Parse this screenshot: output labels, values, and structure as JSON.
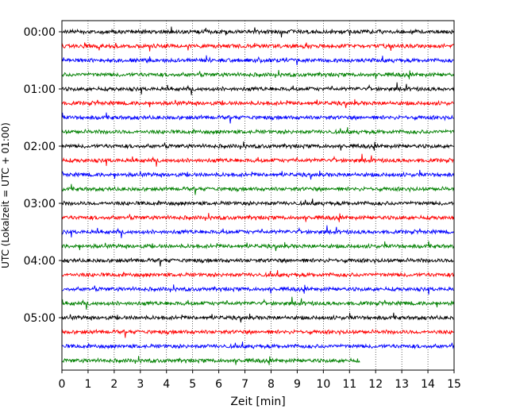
{
  "chart_data": {
    "type": "line",
    "title": "",
    "xlabel": "Zeit  [min]",
    "ylabel": "UTC (Lokalzeit = UTC + 01:00)",
    "xlim": [
      0,
      15
    ],
    "x_ticks": [
      "0",
      "1",
      "2",
      "3",
      "4",
      "5",
      "6",
      "7",
      "8",
      "9",
      "10",
      "11",
      "12",
      "13",
      "14",
      "15"
    ],
    "y_ticks": [
      "00:00",
      "01:00",
      "02:00",
      "03:00",
      "04:00",
      "05:00"
    ],
    "grid": "vertical dotted",
    "series_colors": [
      "#000000",
      "#ff0000",
      "#0000ff",
      "#008000"
    ],
    "rows": [
      {
        "label": "00:00",
        "color": "#000000",
        "end_min": 15
      },
      {
        "label": "00:15",
        "color": "#ff0000",
        "end_min": 15
      },
      {
        "label": "00:30",
        "color": "#0000ff",
        "end_min": 15
      },
      {
        "label": "00:45",
        "color": "#008000",
        "end_min": 15
      },
      {
        "label": "01:00",
        "color": "#000000",
        "end_min": 15
      },
      {
        "label": "01:15",
        "color": "#ff0000",
        "end_min": 15
      },
      {
        "label": "01:30",
        "color": "#0000ff",
        "end_min": 15
      },
      {
        "label": "01:45",
        "color": "#008000",
        "end_min": 15
      },
      {
        "label": "02:00",
        "color": "#000000",
        "end_min": 15
      },
      {
        "label": "02:15",
        "color": "#ff0000",
        "end_min": 15
      },
      {
        "label": "02:30",
        "color": "#0000ff",
        "end_min": 15
      },
      {
        "label": "02:45",
        "color": "#008000",
        "end_min": 15
      },
      {
        "label": "03:00",
        "color": "#000000",
        "end_min": 15
      },
      {
        "label": "03:15",
        "color": "#ff0000",
        "end_min": 15
      },
      {
        "label": "03:30",
        "color": "#0000ff",
        "end_min": 15
      },
      {
        "label": "03:45",
        "color": "#008000",
        "end_min": 15
      },
      {
        "label": "04:00",
        "color": "#000000",
        "end_min": 15
      },
      {
        "label": "04:15",
        "color": "#ff0000",
        "end_min": 15
      },
      {
        "label": "04:30",
        "color": "#0000ff",
        "end_min": 15
      },
      {
        "label": "04:45",
        "color": "#008000",
        "end_min": 15
      },
      {
        "label": "05:00",
        "color": "#000000",
        "end_min": 15
      },
      {
        "label": "05:15",
        "color": "#ff0000",
        "end_min": 15
      },
      {
        "label": "05:30",
        "color": "#0000ff",
        "end_min": 15
      },
      {
        "label": "05:45",
        "color": "#008000",
        "end_min": 11.4
      }
    ]
  }
}
